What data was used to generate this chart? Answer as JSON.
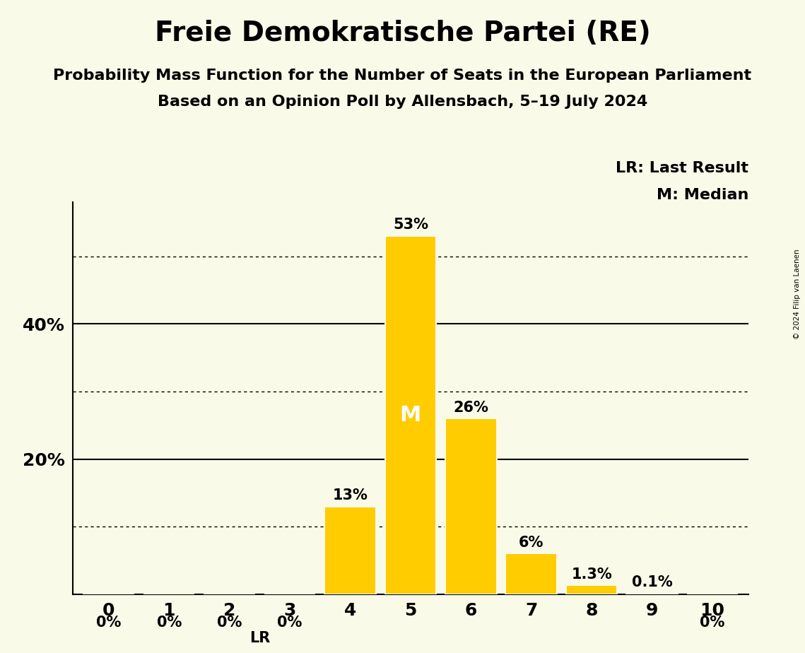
{
  "title": "Freie Demokratische Partei (RE)",
  "subtitle1": "Probability Mass Function for the Number of Seats in the European Parliament",
  "subtitle2": "Based on an Opinion Poll by Allensbach, 5–19 July 2024",
  "copyright": "© 2024 Filip van Laenen",
  "seats": [
    0,
    1,
    2,
    3,
    4,
    5,
    6,
    7,
    8,
    9,
    10
  ],
  "probabilities": [
    0.0,
    0.0,
    0.0,
    0.0,
    13.0,
    53.0,
    26.0,
    6.0,
    1.3,
    0.1,
    0.0
  ],
  "bar_labels": [
    "0%",
    "0%",
    "0%",
    "0%",
    "13%",
    "53%",
    "26%",
    "6%",
    "1.3%",
    "0.1%",
    "0%"
  ],
  "bar_color": "#FFCC00",
  "background_color": "#FAFAE8",
  "last_result_seat": 3,
  "median_seat": 5,
  "yticks_solid": [
    20,
    40
  ],
  "yticks_dotted": [
    10,
    30,
    50
  ],
  "ylim": [
    0,
    58
  ],
  "legend_lr": "LR: Last Result",
  "legend_m": "M: Median",
  "title_fontsize": 28,
  "subtitle_fontsize": 16,
  "label_fontsize": 15,
  "tick_fontsize": 18
}
